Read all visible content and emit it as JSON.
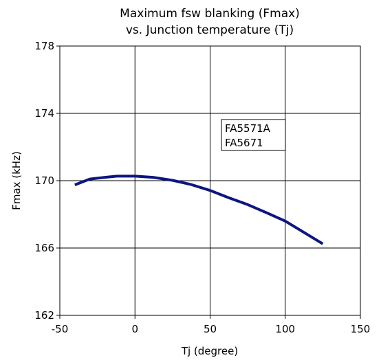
{
  "chart_data": {
    "type": "line",
    "title_line1": "Maximum fsw blanking (Fmax)",
    "title_line2": "vs. Junction temperature (Tj)",
    "xlabel": "Tj (degree)",
    "ylabel": "Fmax (kHz)",
    "xlim": [
      -50,
      150
    ],
    "ylim": [
      162,
      178
    ],
    "x_ticks": [
      -50,
      0,
      50,
      100,
      150
    ],
    "y_ticks": [
      162,
      166,
      170,
      174,
      178
    ],
    "grid": true,
    "legend": [
      "FA5571A",
      "FA5671"
    ],
    "legend_position": "upper-right",
    "series": [
      {
        "color": "#0d1580",
        "x": [
          -40,
          -30,
          -20,
          -12,
          0,
          12,
          25,
          37,
          50,
          62,
          75,
          87,
          100,
          112,
          125
        ],
        "y": [
          169.75,
          170.1,
          170.2,
          170.27,
          170.27,
          170.2,
          170.02,
          169.78,
          169.42,
          169.0,
          168.58,
          168.12,
          167.6,
          166.95,
          166.25
        ]
      }
    ]
  }
}
